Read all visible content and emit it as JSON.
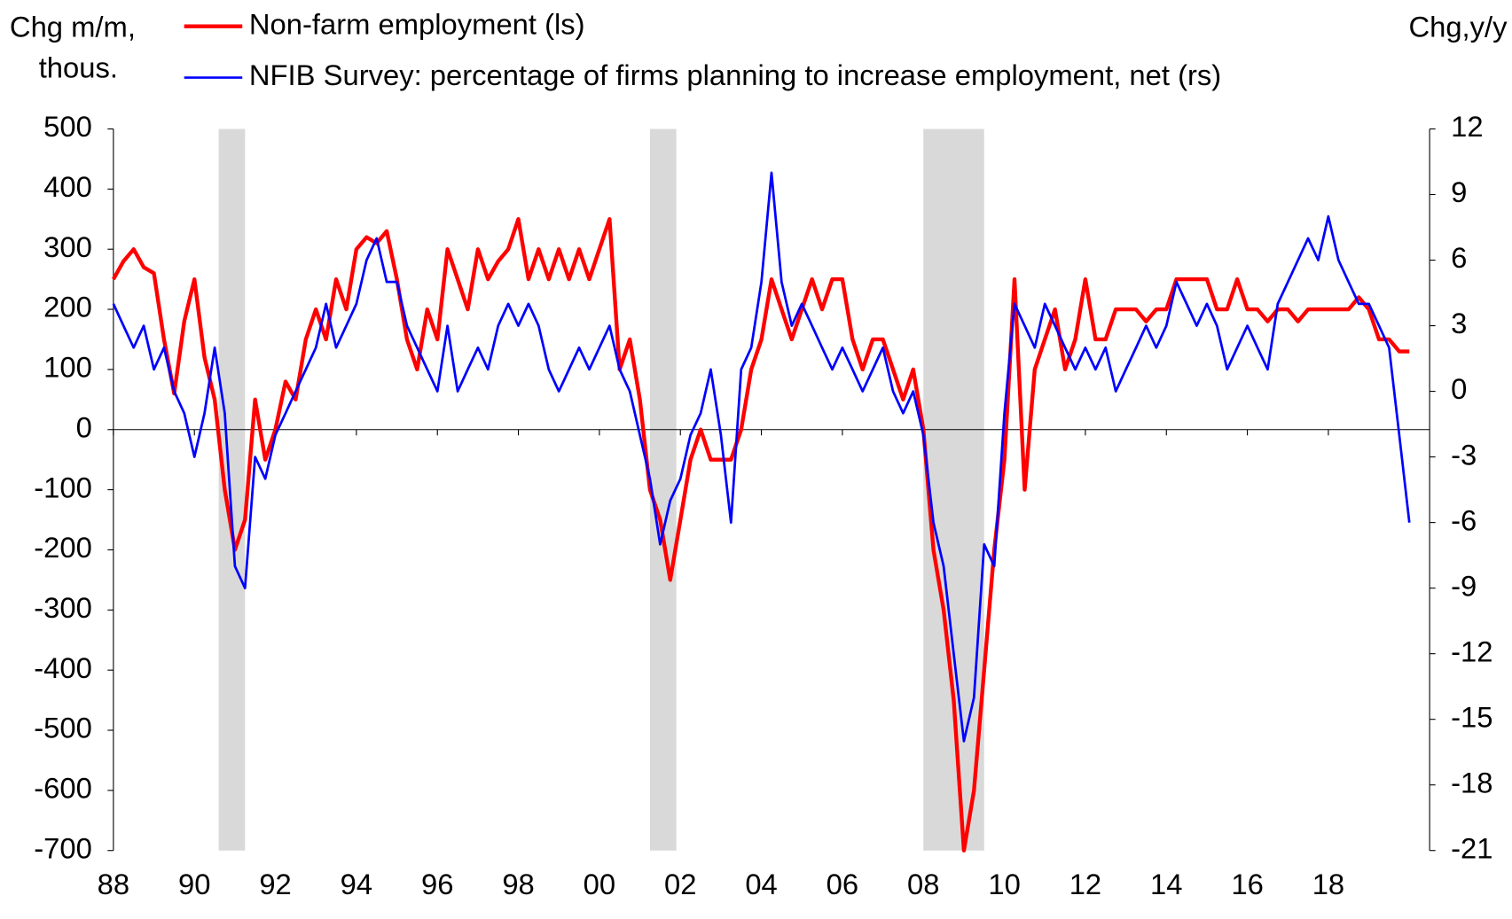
{
  "chart_data": {
    "type": "line",
    "left_axis_label": [
      "Chg m/m,",
      "thous."
    ],
    "right_axis_label": "Chg,y/y",
    "x": [
      1988,
      1988.25,
      1988.5,
      1988.75,
      1989,
      1989.25,
      1989.5,
      1989.75,
      1990,
      1990.25,
      1990.5,
      1990.75,
      1991,
      1991.25,
      1991.5,
      1991.75,
      1992,
      1992.25,
      1992.5,
      1992.75,
      1993,
      1993.25,
      1993.5,
      1993.75,
      1994,
      1994.25,
      1994.5,
      1994.75,
      1995,
      1995.25,
      1995.5,
      1995.75,
      1996,
      1996.25,
      1996.5,
      1996.75,
      1997,
      1997.25,
      1997.5,
      1997.75,
      1998,
      1998.25,
      1998.5,
      1998.75,
      1999,
      1999.25,
      1999.5,
      1999.75,
      2000,
      2000.25,
      2000.5,
      2000.75,
      2001,
      2001.25,
      2001.5,
      2001.75,
      2002,
      2002.25,
      2002.5,
      2002.75,
      2003,
      2003.25,
      2003.5,
      2003.75,
      2004,
      2004.25,
      2004.5,
      2004.75,
      2005,
      2005.25,
      2005.5,
      2005.75,
      2006,
      2006.25,
      2006.5,
      2006.75,
      2007,
      2007.25,
      2007.5,
      2007.75,
      2008,
      2008.25,
      2008.5,
      2008.75,
      2009,
      2009.25,
      2009.5,
      2009.75,
      2010,
      2010.25,
      2010.5,
      2010.75,
      2011,
      2011.25,
      2011.5,
      2011.75,
      2012,
      2012.25,
      2012.5,
      2012.75,
      2013,
      2013.25,
      2013.5,
      2013.75,
      2014,
      2014.25,
      2014.5,
      2014.75,
      2015,
      2015.25,
      2015.5,
      2015.75,
      2016,
      2016.25,
      2016.5,
      2016.75,
      2017,
      2017.25,
      2017.5,
      2017.75,
      2018,
      2018.25,
      2018.5,
      2018.75,
      2019,
      2019.25,
      2019.5,
      2019.75,
      2020
    ],
    "series": [
      {
        "name": "Non-farm employment (ls)",
        "color": "#ff0000",
        "axis": "y",
        "values": [
          250,
          280,
          300,
          270,
          260,
          150,
          60,
          180,
          250,
          120,
          50,
          -100,
          -200,
          -150,
          50,
          -50,
          0,
          80,
          50,
          150,
          200,
          150,
          250,
          200,
          300,
          320,
          310,
          330,
          250,
          150,
          100,
          200,
          150,
          300,
          250,
          200,
          300,
          250,
          280,
          300,
          350,
          250,
          300,
          250,
          300,
          250,
          300,
          250,
          300,
          350,
          100,
          150,
          50,
          -100,
          -150,
          -250,
          -150,
          -50,
          0,
          -50,
          -50,
          -50,
          0,
          100,
          150,
          250,
          200,
          150,
          200,
          250,
          200,
          250,
          250,
          150,
          100,
          150,
          150,
          100,
          50,
          100,
          0,
          -200,
          -300,
          -450,
          -700,
          -600,
          -400,
          -200,
          -50,
          250,
          -100,
          100,
          150,
          200,
          100,
          150,
          250,
          150,
          150,
          200,
          200,
          200,
          180,
          200,
          200,
          250,
          250,
          250,
          250,
          200,
          200,
          250,
          200,
          200,
          180,
          200,
          200,
          180,
          200,
          200,
          200,
          200,
          200,
          220,
          200,
          150,
          150,
          130,
          130
        ]
      },
      {
        "name": "NFIB Survey: percentage of firms planning to increase employment, net (rs)",
        "color": "#0000ff",
        "axis": "y2",
        "values": [
          4,
          3,
          2,
          3,
          1,
          2,
          0,
          -1,
          -3,
          -1,
          2,
          -1,
          -8,
          -9,
          -3,
          -4,
          -2,
          -1,
          0,
          1,
          2,
          4,
          2,
          3,
          4,
          6,
          7,
          5,
          5,
          3,
          2,
          1,
          0,
          3,
          0,
          1,
          2,
          1,
          3,
          4,
          3,
          4,
          3,
          1,
          0,
          1,
          2,
          1,
          2,
          3,
          1,
          0,
          -2,
          -4,
          -7,
          -5,
          -4,
          -2,
          -1,
          1,
          -2,
          -6,
          1,
          2,
          5,
          10,
          5,
          3,
          4,
          3,
          2,
          1,
          2,
          1,
          0,
          1,
          2,
          0,
          -1,
          0,
          -2,
          -6,
          -8,
          -12,
          -16,
          -14,
          -7,
          -8,
          -1,
          4,
          3,
          2,
          4,
          3,
          2,
          1,
          2,
          1,
          2,
          0,
          1,
          2,
          3,
          2,
          3,
          5,
          4,
          3,
          4,
          3,
          1,
          2,
          3,
          2,
          1,
          4,
          5,
          6,
          7,
          6,
          8,
          6,
          5,
          4,
          4,
          3,
          2,
          -2,
          -6
        ]
      }
    ],
    "shaded_periods": [
      [
        1990.6,
        1991.25
      ],
      [
        2001.25,
        2001.9
      ],
      [
        2008,
        2009.5
      ]
    ],
    "xlim": [
      1988,
      2020.5
    ],
    "xticks": [
      {
        "value": 1988,
        "label": "88"
      },
      {
        "value": 1990,
        "label": "90"
      },
      {
        "value": 1992,
        "label": "92"
      },
      {
        "value": 1994,
        "label": "94"
      },
      {
        "value": 1996,
        "label": "96"
      },
      {
        "value": 1998,
        "label": "98"
      },
      {
        "value": 2000,
        "label": "00"
      },
      {
        "value": 2002,
        "label": "02"
      },
      {
        "value": 2004,
        "label": "04"
      },
      {
        "value": 2006,
        "label": "06"
      },
      {
        "value": 2008,
        "label": "08"
      },
      {
        "value": 2010,
        "label": "10"
      },
      {
        "value": 2012,
        "label": "12"
      },
      {
        "value": 2014,
        "label": "14"
      },
      {
        "value": 2016,
        "label": "16"
      },
      {
        "value": 2018,
        "label": "18"
      }
    ],
    "ylim": [
      -700,
      500
    ],
    "yticks": [
      -700,
      -600,
      -500,
      -400,
      -300,
      -200,
      -100,
      0,
      100,
      200,
      300,
      400,
      500
    ],
    "y2lim": [
      -21,
      12
    ],
    "y2ticks": [
      -21,
      -18,
      -15,
      -12,
      -9,
      -6,
      -3,
      0,
      3,
      6,
      9,
      12
    ],
    "grid": false
  }
}
